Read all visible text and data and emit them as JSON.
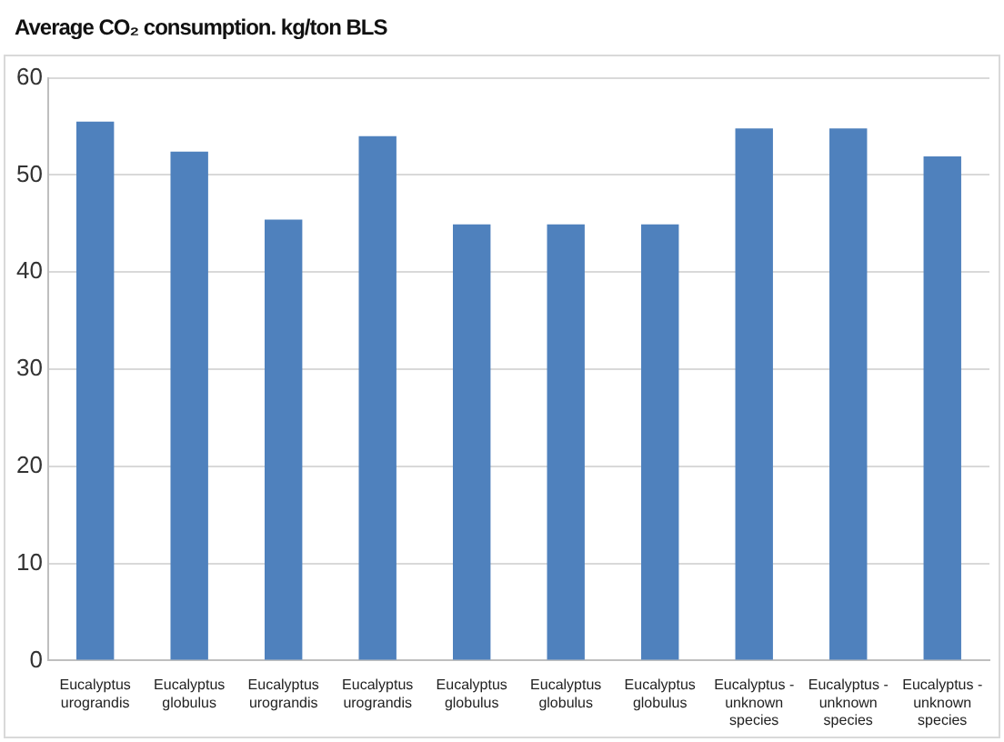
{
  "chart_data": {
    "type": "bar",
    "title": "Average CO₂ consumption. kg/ton BLS",
    "categories": [
      "Eucalyptus urograndis",
      "Eucalyptus globulus",
      "Eucalyptus urograndis",
      "Eucalyptus urograndis",
      "Eucalyptus globulus",
      "Eucalyptus globulus",
      "Eucalyptus globulus",
      "Eucalyptus - unknown species",
      "Eucalyptus - unknown species",
      "Eucalyptus - unknown species"
    ],
    "values": [
      55.5,
      52.4,
      45.4,
      54.0,
      44.9,
      44.9,
      44.9,
      54.8,
      54.8,
      51.9
    ],
    "color": "#4f81bd",
    "ylim": [
      0,
      60
    ],
    "yticks": [
      0,
      10,
      20,
      30,
      40,
      50,
      60
    ],
    "grid": "y",
    "legend": false
  }
}
